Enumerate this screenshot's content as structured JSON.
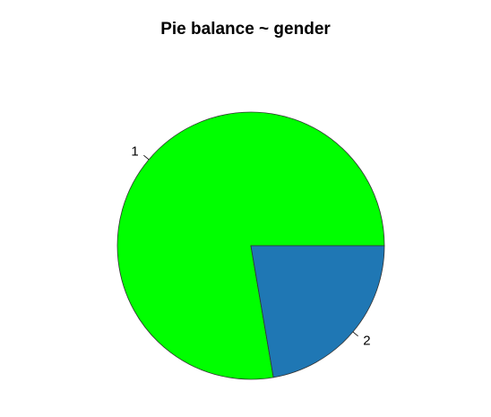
{
  "chart_data": {
    "type": "pie",
    "title": "Pie balance ~ gender",
    "categories": [
      "1",
      "2"
    ],
    "values": [
      77.7,
      22.3
    ],
    "colors": [
      "#00ff00",
      "#1f77b4"
    ],
    "direction": "counterclockwise",
    "start_angle_deg": 0
  }
}
